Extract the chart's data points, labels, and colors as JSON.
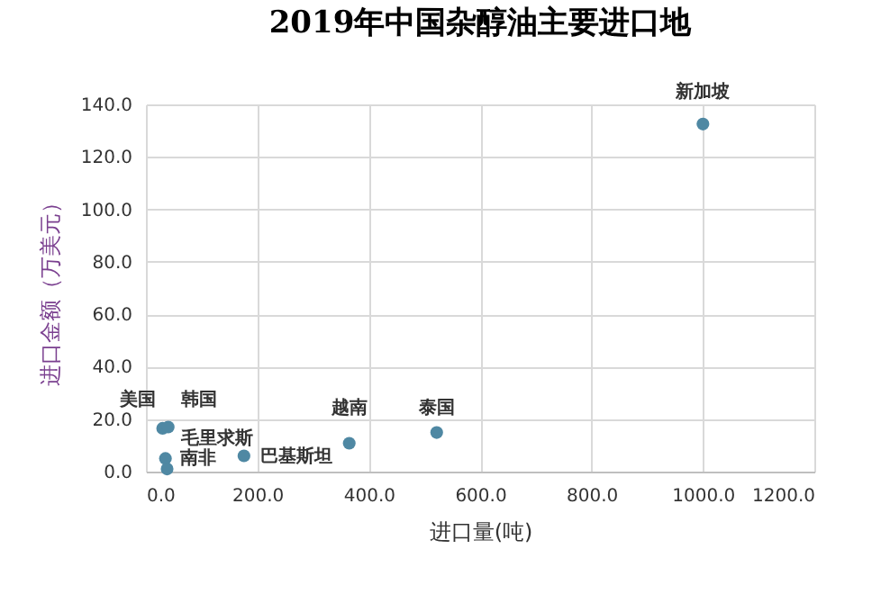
{
  "chart_data": {
    "type": "scatter",
    "title": "2019年中国杂醇油主要进口地",
    "xlabel": "进口量(吨)",
    "ylabel": "进口金额（万美元）",
    "x": [
      30,
      40,
      35,
      38,
      176,
      365,
      522,
      1000
    ],
    "series": [
      {
        "color": "#4f88a3",
        "values": [
          16.5,
          17,
          5,
          1,
          6,
          10.8,
          14.9,
          132.5
        ]
      }
    ],
    "annotations": [
      {
        "text": "美国",
        "x": 30,
        "y": 16.5
      },
      {
        "text": "韩国",
        "x": 40,
        "y": 17
      },
      {
        "text": "南非",
        "x": 35,
        "y": 5
      },
      {
        "text": "毛里求斯",
        "x": 38,
        "y": 1
      },
      {
        "text": "巴基斯坦",
        "x": 176,
        "y": 6
      },
      {
        "text": "越南",
        "x": 365,
        "y": 10.8
      },
      {
        "text": "泰国",
        "x": 522,
        "y": 14.9
      },
      {
        "text": "新加坡",
        "x": 1000,
        "y": 132.5
      }
    ],
    "xlim": [
      0,
      1200
    ],
    "ylim": [
      0,
      140
    ],
    "xticks": [
      {
        "value": 0,
        "label": "0.0"
      },
      {
        "value": 200,
        "label": "200.0"
      },
      {
        "value": 400,
        "label": "400.0"
      },
      {
        "value": 600,
        "label": "600.0"
      },
      {
        "value": 800,
        "label": "800.0"
      },
      {
        "value": 1000,
        "label": "1000.0"
      },
      {
        "value": 1200,
        "label": "1200.0"
      }
    ],
    "yticks": [
      {
        "value": 0,
        "label": "0.0"
      },
      {
        "value": 20,
        "label": "20.0"
      },
      {
        "value": 40,
        "label": "40.0"
      },
      {
        "value": 60,
        "label": "60.0"
      },
      {
        "value": 80,
        "label": "80.0"
      },
      {
        "value": 100,
        "label": "100.0"
      },
      {
        "value": 120,
        "label": "120.0"
      },
      {
        "value": 140,
        "label": "140.0"
      }
    ],
    "grid": true,
    "marker": "circle"
  }
}
